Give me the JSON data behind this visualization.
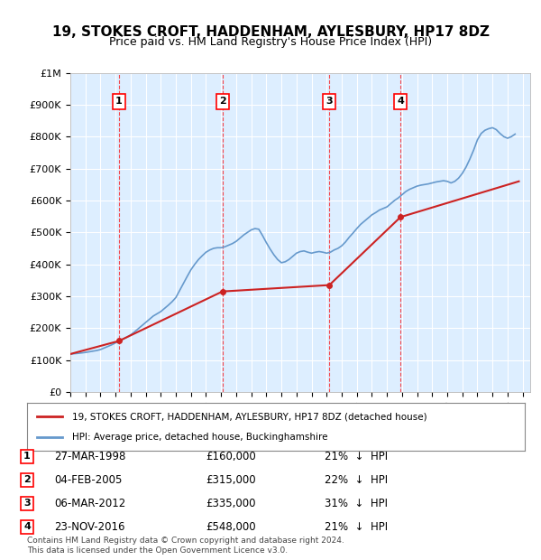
{
  "title": "19, STOKES CROFT, HADDENHAM, AYLESBURY, HP17 8DZ",
  "subtitle": "Price paid vs. HM Land Registry's House Price Index (HPI)",
  "xlabel": "",
  "ylabel": "",
  "background_color": "#ffffff",
  "plot_bg_color": "#ddeeff",
  "grid_color": "#ffffff",
  "ylim": [
    0,
    1000000
  ],
  "yticks": [
    0,
    100000,
    200000,
    300000,
    400000,
    500000,
    600000,
    700000,
    800000,
    900000,
    1000000
  ],
  "ytick_labels": [
    "£0",
    "£100K",
    "£200K",
    "£300K",
    "£400K",
    "£500K",
    "£600K",
    "£700K",
    "£800K",
    "£900K",
    "£1M"
  ],
  "xlim_start": 1995.0,
  "xlim_end": 2025.5,
  "hpi_color": "#6699cc",
  "price_color": "#cc2222",
  "transactions": [
    {
      "num": 1,
      "date": "27-MAR-1998",
      "price": 160000,
      "year": 1998.23,
      "pct": "21%",
      "dir": "↓"
    },
    {
      "num": 2,
      "date": "04-FEB-2005",
      "price": 315000,
      "year": 2005.09,
      "pct": "22%",
      "dir": "↓"
    },
    {
      "num": 3,
      "date": "06-MAR-2012",
      "price": 335000,
      "year": 2012.18,
      "pct": "31%",
      "dir": "↓"
    },
    {
      "num": 4,
      "date": "23-NOV-2016",
      "price": 548000,
      "year": 2016.9,
      "pct": "21%",
      "dir": "↓"
    }
  ],
  "legend_label_red": "19, STOKES CROFT, HADDENHAM, AYLESBURY, HP17 8DZ (detached house)",
  "legend_label_blue": "HPI: Average price, detached house, Buckinghamshire",
  "footer": "Contains HM Land Registry data © Crown copyright and database right 2024.\nThis data is licensed under the Open Government Licence v3.0.",
  "hpi_x": [
    1995.0,
    1995.25,
    1995.5,
    1995.75,
    1996.0,
    1996.25,
    1996.5,
    1996.75,
    1997.0,
    1997.25,
    1997.5,
    1997.75,
    1998.0,
    1998.25,
    1998.5,
    1998.75,
    1999.0,
    1999.25,
    1999.5,
    1999.75,
    2000.0,
    2000.25,
    2000.5,
    2000.75,
    2001.0,
    2001.25,
    2001.5,
    2001.75,
    2002.0,
    2002.25,
    2002.5,
    2002.75,
    2003.0,
    2003.25,
    2003.5,
    2003.75,
    2004.0,
    2004.25,
    2004.5,
    2004.75,
    2005.0,
    2005.25,
    2005.5,
    2005.75,
    2006.0,
    2006.25,
    2006.5,
    2006.75,
    2007.0,
    2007.25,
    2007.5,
    2007.75,
    2008.0,
    2008.25,
    2008.5,
    2008.75,
    2009.0,
    2009.25,
    2009.5,
    2009.75,
    2010.0,
    2010.25,
    2010.5,
    2010.75,
    2011.0,
    2011.25,
    2011.5,
    2011.75,
    2012.0,
    2012.25,
    2012.5,
    2012.75,
    2013.0,
    2013.25,
    2013.5,
    2013.75,
    2014.0,
    2014.25,
    2014.5,
    2014.75,
    2015.0,
    2015.25,
    2015.5,
    2015.75,
    2016.0,
    2016.25,
    2016.5,
    2016.75,
    2017.0,
    2017.25,
    2017.5,
    2017.75,
    2018.0,
    2018.25,
    2018.5,
    2018.75,
    2019.0,
    2019.25,
    2019.5,
    2019.75,
    2020.0,
    2020.25,
    2020.5,
    2020.75,
    2021.0,
    2021.25,
    2021.5,
    2021.75,
    2022.0,
    2022.25,
    2022.5,
    2022.75,
    2023.0,
    2023.25,
    2023.5,
    2023.75,
    2024.0,
    2024.25,
    2024.5
  ],
  "hpi_y": [
    119000,
    120000,
    121000,
    122500,
    124000,
    126000,
    128000,
    130000,
    133000,
    138000,
    143000,
    148000,
    154000,
    160000,
    166000,
    172000,
    179000,
    188000,
    198000,
    208000,
    218000,
    228000,
    238000,
    245000,
    252000,
    262000,
    272000,
    283000,
    296000,
    318000,
    340000,
    362000,
    383000,
    400000,
    415000,
    427000,
    438000,
    445000,
    450000,
    452000,
    452000,
    455000,
    460000,
    465000,
    472000,
    482000,
    492000,
    500000,
    508000,
    512000,
    510000,
    490000,
    468000,
    448000,
    430000,
    415000,
    405000,
    408000,
    415000,
    425000,
    435000,
    440000,
    442000,
    438000,
    435000,
    438000,
    440000,
    438000,
    435000,
    438000,
    445000,
    450000,
    458000,
    470000,
    485000,
    498000,
    512000,
    525000,
    535000,
    545000,
    555000,
    562000,
    570000,
    575000,
    580000,
    590000,
    600000,
    608000,
    618000,
    628000,
    635000,
    640000,
    645000,
    648000,
    650000,
    652000,
    655000,
    658000,
    660000,
    662000,
    660000,
    655000,
    660000,
    670000,
    685000,
    705000,
    730000,
    758000,
    790000,
    810000,
    820000,
    825000,
    828000,
    822000,
    810000,
    800000,
    795000,
    800000,
    808000
  ],
  "price_x": [
    1995.0,
    1998.23,
    2005.09,
    2012.18,
    2016.9,
    2024.75
  ],
  "price_y": [
    119000,
    160000,
    315000,
    335000,
    548000,
    660000
  ]
}
